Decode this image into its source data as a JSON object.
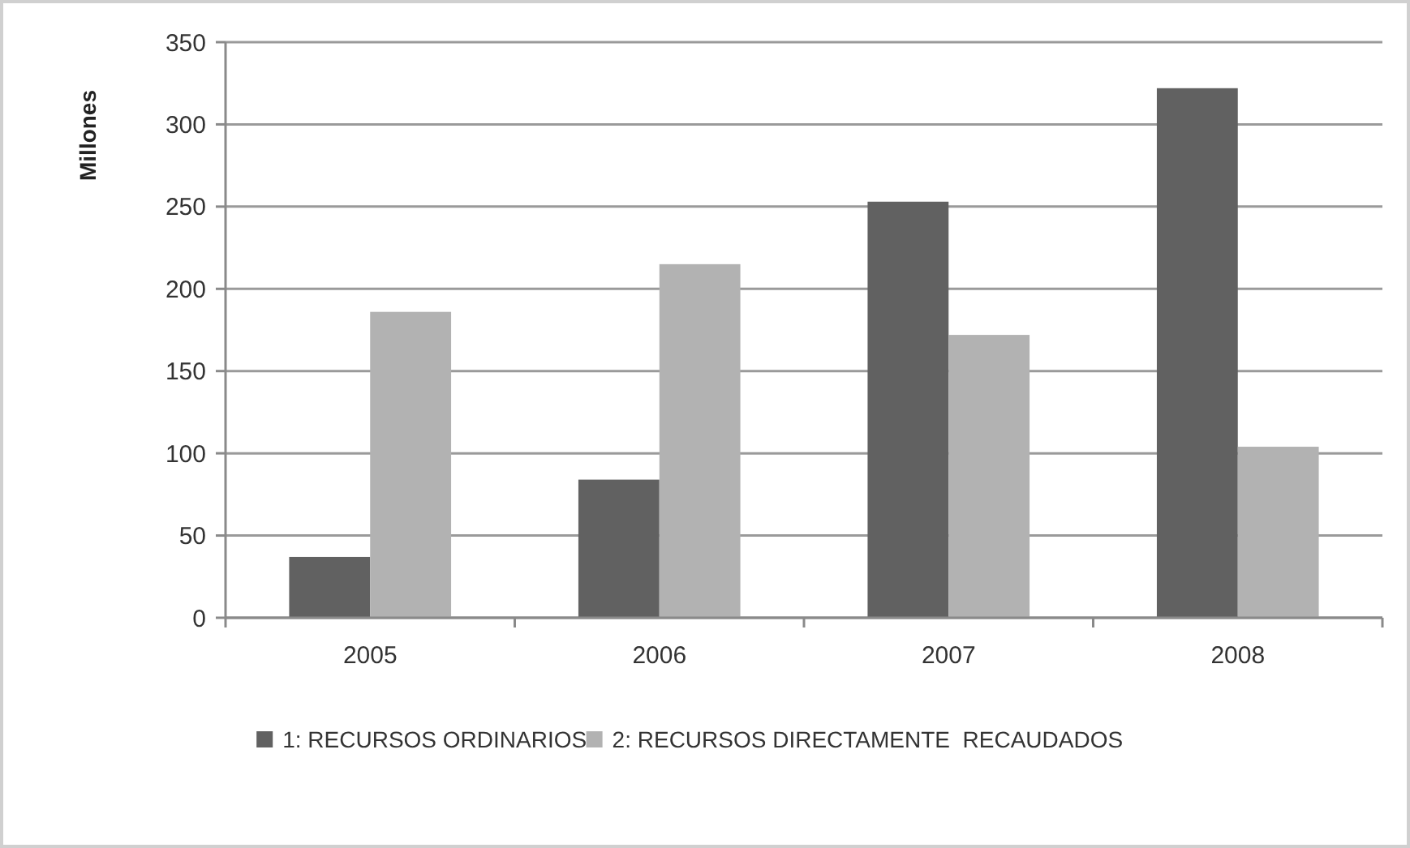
{
  "chart_data": {
    "type": "bar",
    "ylabel": "Millones",
    "categories": [
      "2005",
      "2006",
      "2007",
      "2008"
    ],
    "series": [
      {
        "name": "1: RECURSOS ORDINARIOS",
        "color": "#616161",
        "values": [
          37,
          84,
          253,
          322
        ]
      },
      {
        "name": "2: RECURSOS DIRECTAMENTE  RECAUDADOS",
        "color": "#b2b2b2",
        "values": [
          186,
          215,
          172,
          104
        ]
      }
    ],
    "ylim": [
      0,
      350
    ],
    "yticks": [
      0,
      50,
      100,
      150,
      200,
      250,
      300,
      350
    ],
    "grid": "y",
    "legend": "bottom"
  }
}
